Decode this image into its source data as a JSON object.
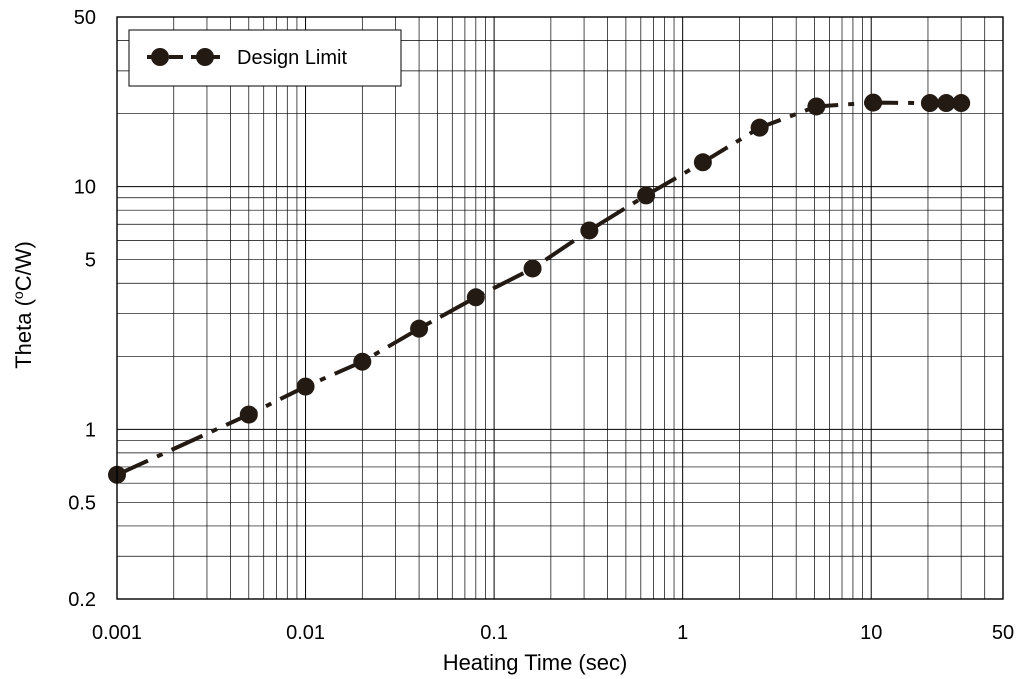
{
  "chart_data": {
    "type": "line",
    "title": "",
    "xlabel": "Heating Time (sec)",
    "ylabel": "Theta (°C/W)",
    "ylabel_main": "Theta (",
    "ylabel_sup": "o",
    "ylabel_rest": "C/W)",
    "xscale": "log",
    "yscale": "log",
    "xlim": [
      0.001,
      50
    ],
    "ylim": [
      0.2,
      50
    ],
    "grid": true,
    "legend_position": "top-left",
    "x_tick_labels": [
      "0.001",
      "0.01",
      "0.1",
      "1",
      "10",
      "50"
    ],
    "x_tick_values": [
      0.001,
      0.01,
      0.1,
      1,
      10,
      50
    ],
    "y_tick_labels": [
      "0.2",
      "0.5",
      "1",
      "5",
      "10",
      "50"
    ],
    "y_tick_values": [
      0.2,
      0.5,
      1,
      5,
      10,
      50
    ],
    "series": [
      {
        "name": "Design Limit",
        "color": "#231a14",
        "line_style": "dashed",
        "marker": "circle",
        "x": [
          0.001,
          0.005,
          0.01,
          0.02,
          0.04,
          0.08,
          0.16,
          0.32,
          0.64,
          1.28,
          2.56,
          5.12,
          10.24,
          20.48,
          25,
          30
        ],
        "y": [
          0.65,
          1.15,
          1.5,
          1.9,
          2.6,
          3.5,
          4.6,
          6.6,
          9.2,
          12.6,
          17.5,
          21.4,
          22.2,
          22.1,
          22.1,
          22.1
        ]
      }
    ]
  }
}
